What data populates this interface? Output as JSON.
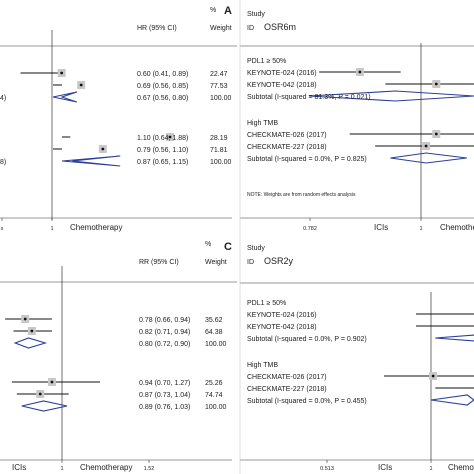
{
  "chart_data": [
    {
      "type": "forest",
      "panel_label": "",
      "header": {
        "col1": "HR (95% CI)",
        "pct": "%",
        "col2": "Weight",
        "col_study": "",
        "study_id": ""
      },
      "axis": {
        "ticks": [
          "s",
          "1"
        ],
        "favors_left": "",
        "favors_right": "Chemotherapy"
      },
      "rows": [
        {
          "kind": "study",
          "study": "",
          "estimate": 0.6,
          "lower": 0.41,
          "upper": 0.89,
          "ci_text": "0.60 (0.41, 0.89)",
          "weight": "22.47"
        },
        {
          "kind": "study",
          "study": "",
          "estimate": 0.69,
          "lower": 0.56,
          "upper": 0.85,
          "ci_text": "0.69 (0.56, 0.85)",
          "weight": "77.53"
        },
        {
          "kind": "subtotal",
          "study": "4)",
          "estimate": 0.67,
          "lower": 0.56,
          "upper": 0.8,
          "ci_text": "0.67 (0.56, 0.80)",
          "weight": "100.00"
        },
        {
          "kind": "study",
          "study": "",
          "estimate": 1.1,
          "lower": 0.64,
          "upper": 1.88,
          "ci_text": "1.10 (0.64, 1.88)",
          "weight": "28.19"
        },
        {
          "kind": "study",
          "study": "",
          "estimate": 0.79,
          "lower": 0.56,
          "upper": 1.1,
          "ci_text": "0.79 (0.56, 1.10)",
          "weight": "71.81"
        },
        {
          "kind": "subtotal",
          "study": "8)",
          "estimate": 0.87,
          "lower": 0.65,
          "upper": 1.15,
          "ci_text": "0.87 (0.65, 1.15)",
          "weight": "100.00"
        }
      ]
    },
    {
      "type": "forest",
      "panel_label": "A",
      "header": {
        "col1": "",
        "pct": "",
        "col2": "",
        "col_study": "Study",
        "study_id": "ID",
        "outcome": "OSR6m"
      },
      "axis": {
        "ticks": [
          "0.782",
          "1"
        ],
        "favors_left": "ICIs",
        "favors_right": "Chemotherap"
      },
      "note": "NOTE: Weights are from random effects analysis",
      "rows": [
        {
          "kind": "group",
          "study": "PDL1 ≥ 50%"
        },
        {
          "kind": "study",
          "study": "KEYNOTE-024 (2016)",
          "estimate": 0.88,
          "lower": 0.8,
          "upper": 0.96
        },
        {
          "kind": "study",
          "study": "KEYNOTE-042 (2018)",
          "estimate": 1.03,
          "lower": 0.93,
          "upper": 1.11
        },
        {
          "kind": "subtotal",
          "study": "Subtotal  (I-squared = 81.3%, P = 0.021)",
          "estimate": 0.95,
          "lower": 0.78,
          "upper": 1.12
        },
        {
          "kind": "group",
          "study": "High TMB"
        },
        {
          "kind": "study",
          "study": "CHECKMATE-026 (2017)",
          "estimate": 1.03,
          "lower": 0.86,
          "upper": 1.12
        },
        {
          "kind": "study",
          "study": "CHECKMATE-227 (2018)",
          "estimate": 1.01,
          "lower": 0.91,
          "upper": 1.12
        },
        {
          "kind": "subtotal",
          "study": "Subtotal  (I-squared = 0.0%, P = 0.825)",
          "estimate": 1.01,
          "lower": 0.94,
          "upper": 1.09
        }
      ]
    },
    {
      "type": "forest",
      "panel_label": "",
      "header": {
        "col1": "RR (95% CI)",
        "pct": "%",
        "col2": "Weight",
        "col_study": "",
        "study_id": ""
      },
      "axis": {
        "ticks": [
          "1",
          "1.52"
        ],
        "favors_left": "ICIs",
        "favors_right": "Chemotherapy"
      },
      "rows": [
        {
          "kind": "study",
          "study": "",
          "estimate": 0.78,
          "lower": 0.66,
          "upper": 0.94,
          "ci_text": "0.78 (0.66, 0.94)",
          "weight": "35.62"
        },
        {
          "kind": "study",
          "study": "",
          "estimate": 0.82,
          "lower": 0.71,
          "upper": 0.94,
          "ci_text": "0.82 (0.71, 0.94)",
          "weight": "64.38"
        },
        {
          "kind": "subtotal",
          "study": "",
          "estimate": 0.8,
          "lower": 0.72,
          "upper": 0.9,
          "ci_text": "0.80 (0.72, 0.90)",
          "weight": "100.00"
        },
        {
          "kind": "study",
          "study": "",
          "estimate": 0.94,
          "lower": 0.7,
          "upper": 1.27,
          "ci_text": "0.94 (0.70, 1.27)",
          "weight": "25.26"
        },
        {
          "kind": "study",
          "study": "",
          "estimate": 0.87,
          "lower": 0.73,
          "upper": 1.04,
          "ci_text": "0.87 (0.73, 1.04)",
          "weight": "74.74"
        },
        {
          "kind": "subtotal",
          "study": "",
          "estimate": 0.89,
          "lower": 0.76,
          "upper": 1.03,
          "ci_text": "0.89 (0.76, 1.03)",
          "weight": "100.00"
        }
      ]
    },
    {
      "type": "forest",
      "panel_label": "C",
      "header": {
        "col1": "",
        "pct": "",
        "col2": "",
        "col_study": "Study",
        "study_id": "ID",
        "outcome": "OSR2y"
      },
      "axis": {
        "ticks": [
          "0.513",
          "1"
        ],
        "favors_left": "ICIs",
        "favors_right": "Chemoth"
      },
      "rows": [
        {
          "kind": "group",
          "study": "PDL1 ≥ 50%"
        },
        {
          "kind": "study",
          "study": "KEYNOTE-024 (2016)",
          "estimate": 1.34,
          "lower": 0.93,
          "upper": 1.75
        },
        {
          "kind": "study",
          "study": "KEYNOTE-042 (2018)",
          "estimate": 1.33,
          "lower": 0.93,
          "upper": 1.52
        },
        {
          "kind": "subtotal",
          "study": "Subtotal  (I-squared = 0.0%, P = 0.902)",
          "estimate": 1.33,
          "lower": 1.02,
          "upper": 1.62
        },
        {
          "kind": "group",
          "study": "High TMB"
        },
        {
          "kind": "study",
          "study": "CHECKMATE-026 (2017)",
          "estimate": 1.01,
          "lower": 0.78,
          "upper": 1.4
        },
        {
          "kind": "study",
          "study": "CHECKMATE-227 (2018)",
          "estimate": 1.23,
          "lower": 1.02,
          "upper": 1.4
        },
        {
          "kind": "subtotal",
          "study": "Subtotal  (I-squared = 0.0%, P = 0.455)",
          "estimate": 1.17,
          "lower": 1.0,
          "upper": 1.31
        }
      ]
    }
  ]
}
